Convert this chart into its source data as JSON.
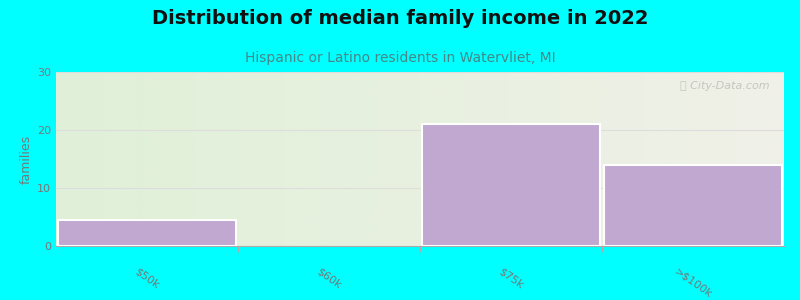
{
  "title": "Distribution of median family income in 2022",
  "subtitle": "Hispanic or Latino residents in Watervliet, MI",
  "title_fontsize": 14,
  "subtitle_fontsize": 10,
  "ylabel": "families",
  "ylabel_fontsize": 9,
  "background_color": "#00FFFF",
  "plot_bg_color_left": "#e0f0d8",
  "plot_bg_color_right": "#f0f0e8",
  "bar_color": "#c0a8d0",
  "bar_edge_color": "#ffffff",
  "categories": [
    "$50k",
    "$60k",
    "$75k",
    ">$100k"
  ],
  "values": [
    4.5,
    0,
    21,
    14
  ],
  "ylim": [
    0,
    30
  ],
  "yticks": [
    0,
    10,
    20,
    30
  ],
  "watermark": "ⓘ City-Data.com",
  "grid_color": "#dddddd",
  "title_color": "#111111",
  "subtitle_color": "#448888",
  "tick_label_color": "#777777"
}
